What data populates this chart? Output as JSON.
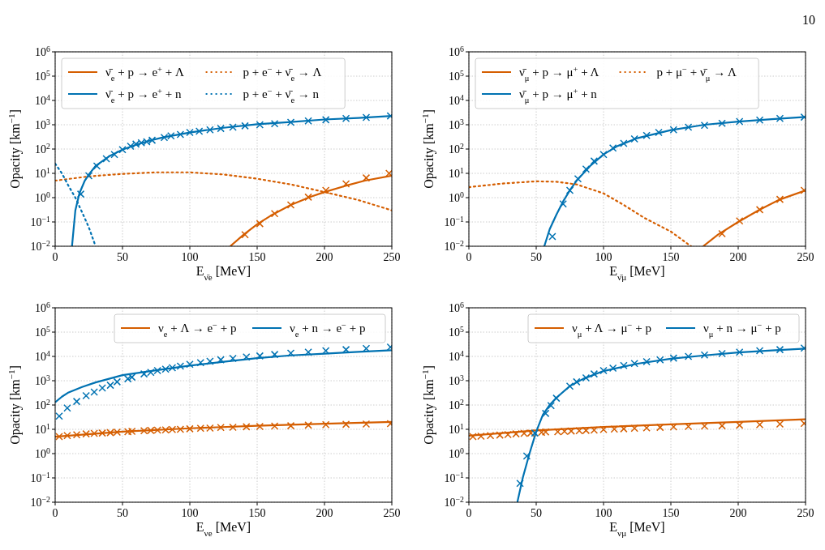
{
  "chart_data": [
    {
      "type": "line",
      "annotations": [
        "10"
      ],
      "xlabel": "E$_{ν̄e}$ [MeV]",
      "ylabel": "Opacity [km$^{−1}$]",
      "xlim": [
        0,
        250
      ],
      "xticks": [
        0,
        50,
        100,
        150,
        200,
        250
      ],
      "ylim": [
        0.01,
        1000000
      ],
      "yticks": [
        {
          "value": 0.01,
          "label": "10$^{−2}$"
        },
        {
          "value": 0.1,
          "label": "10$^{−1}$"
        },
        {
          "value": 1,
          "label": "10$^{0}$"
        },
        {
          "value": 10,
          "label": "10$^{1}$"
        },
        {
          "value": 100,
          "label": "10$^{2}$"
        },
        {
          "value": 1000,
          "label": "10$^{3}$"
        },
        {
          "value": 10000,
          "label": "10$^{4}$"
        },
        {
          "value": 100000,
          "label": "10$^{5}$"
        },
        {
          "value": 1000000,
          "label": "10$^{6}$"
        }
      ],
      "log": true,
      "grid": true,
      "legend": "top left",
      "series": [
        {
          "type": "line",
          "name": "ν̄$_{e}$ + p → e$^{+}$ + Λ",
          "color": "#d55e00",
          "line_style": "solid",
          "x": [
            130,
            140,
            150,
            160,
            175,
            190,
            200,
            215,
            230,
            250
          ],
          "values": [
            0.01,
            0.03,
            0.08,
            0.18,
            0.5,
            1.1,
            1.7,
            3,
            5,
            8
          ]
        },
        {
          "type": "line",
          "name": "ν̄$_{e}$ + p → e$^{+}$ + n",
          "color": "#0072b2",
          "line_style": "solid",
          "x": [
            12.5,
            15,
            18,
            22,
            25,
            30,
            40,
            50,
            60,
            70,
            80,
            100,
            125,
            150,
            175,
            200,
            225,
            250
          ],
          "values": [
            0.01,
            0.3,
            1.5,
            5,
            9,
            20,
            50,
            95,
            150,
            220,
            300,
            480,
            750,
            1050,
            1300,
            1650,
            1900,
            2300
          ]
        },
        {
          "type": "line",
          "name": "p + e$^{−}$ + ν̄$_{e}$ → Λ",
          "color": "#d55e00",
          "line_style": "dotted",
          "x": [
            0,
            25,
            50,
            75,
            100,
            125,
            150,
            175,
            200,
            225,
            250
          ],
          "values": [
            5,
            7.5,
            9.5,
            11,
            11,
            9,
            6,
            3.5,
            1.7,
            0.8,
            0.3
          ]
        },
        {
          "type": "line",
          "name": "p + e$^{−}$ + ν̄$_{e}$ → n",
          "color": "#0072b2",
          "line_style": "dotted",
          "x": [
            0,
            5,
            10,
            15,
            20,
            25,
            30
          ],
          "values": [
            25,
            10,
            3,
            1,
            0.25,
            0.06,
            0.01
          ]
        },
        {
          "type": "scatter",
          "marker": "cross",
          "color": "#d55e00",
          "x": [
            141,
            152,
            163,
            175,
            188,
            201,
            216,
            231,
            248
          ],
          "values": [
            0.03,
            0.085,
            0.22,
            0.5,
            1.05,
            2,
            3.7,
            6.5,
            10
          ]
        },
        {
          "type": "scatter",
          "marker": "cross",
          "color": "#0072b2",
          "x": [
            19,
            25,
            31,
            38,
            44,
            50,
            56,
            60,
            64,
            68,
            72,
            81,
            86,
            93,
            100,
            107,
            115,
            123,
            132,
            141,
            152,
            163,
            175,
            188,
            201,
            216,
            231,
            249
          ],
          "values": [
            1.4,
            8,
            20,
            40,
            60,
            95,
            130,
            160,
            180,
            200,
            230,
            300,
            350,
            400,
            480,
            540,
            620,
            700,
            800,
            900,
            1000,
            1100,
            1250,
            1450,
            1600,
            1800,
            2000,
            2300
          ]
        }
      ]
    },
    {
      "type": "line",
      "xlabel": "E$_{ν̄μ}$ [MeV]",
      "ylabel": "Opacity [km$^{−1}$]",
      "xlim": [
        0,
        250
      ],
      "xticks": [
        0,
        50,
        100,
        150,
        200,
        250
      ],
      "ylim": [
        0.01,
        1000000
      ],
      "yticks": [
        {
          "value": 0.01,
          "label": "10$^{−2}$"
        },
        {
          "value": 0.1,
          "label": "10$^{−1}$"
        },
        {
          "value": 1,
          "label": "10$^{0}$"
        },
        {
          "value": 10,
          "label": "10$^{1}$"
        },
        {
          "value": 100,
          "label": "10$^{2}$"
        },
        {
          "value": 1000,
          "label": "10$^{3}$"
        },
        {
          "value": 10000,
          "label": "10$^{4}$"
        },
        {
          "value": 100000,
          "label": "10$^{5}$"
        },
        {
          "value": 1000000,
          "label": "10$^{6}$"
        }
      ],
      "log": true,
      "grid": true,
      "legend": "top left",
      "series": [
        {
          "type": "line",
          "name": "ν̄$_{μ}$ + p → μ$^{+}$ + Λ",
          "color": "#d55e00",
          "line_style": "solid",
          "x": [
            174,
            185,
            200,
            215,
            230,
            250
          ],
          "values": [
            0.01,
            0.03,
            0.1,
            0.3,
            0.8,
            2
          ]
        },
        {
          "type": "line",
          "name": "ν̄$_{μ}$ + p → μ$^{+}$ + n",
          "color": "#0072b2",
          "line_style": "solid",
          "x": [
            56,
            60,
            65,
            70,
            75,
            80,
            90,
            100,
            110,
            125,
            150,
            175,
            200,
            225,
            250
          ],
          "values": [
            0.01,
            0.05,
            0.2,
            0.7,
            2,
            5,
            20,
            60,
            130,
            280,
            600,
            1000,
            1350,
            1700,
            2100
          ]
        },
        {
          "type": "line",
          "name": "p + μ$^{−}$ + ν̄$_{μ}$ → Λ",
          "color": "#d55e00",
          "line_style": "dotted",
          "x": [
            0,
            25,
            50,
            65,
            80,
            100,
            115,
            130,
            150,
            165
          ],
          "values": [
            2.7,
            3.8,
            4.7,
            4.5,
            3.5,
            1.5,
            0.5,
            0.15,
            0.04,
            0.01
          ]
        },
        {
          "type": "scatter",
          "marker": "cross",
          "color": "#d55e00",
          "x": [
            188,
            201,
            216,
            231,
            249
          ],
          "values": [
            0.033,
            0.11,
            0.32,
            0.85,
            2
          ]
        },
        {
          "type": "scatter",
          "marker": "cross",
          "color": "#0072b2",
          "x": [
            62,
            70,
            75,
            81,
            87,
            93,
            100,
            107,
            115,
            123,
            132,
            141,
            152,
            163,
            175,
            188,
            201,
            216,
            231,
            249
          ],
          "values": [
            0.025,
            0.55,
            2,
            6,
            15,
            32,
            60,
            110,
            170,
            260,
            360,
            480,
            620,
            800,
            950,
            1150,
            1350,
            1550,
            1800,
            2050
          ]
        }
      ]
    },
    {
      "type": "line",
      "xlabel": "E$_{νe}$ [MeV]",
      "ylabel": "Opacity [km$^{−1}$]",
      "xlim": [
        0,
        250
      ],
      "xticks": [
        0,
        50,
        100,
        150,
        200,
        250
      ],
      "ylim": [
        0.01,
        1000000
      ],
      "yticks": [
        {
          "value": 0.01,
          "label": "10$^{−2}$"
        },
        {
          "value": 0.1,
          "label": "10$^{−1}$"
        },
        {
          "value": 1,
          "label": "10$^{0}$"
        },
        {
          "value": 10,
          "label": "10$^{1}$"
        },
        {
          "value": 100,
          "label": "10$^{2}$"
        },
        {
          "value": 1000,
          "label": "10$^{3}$"
        },
        {
          "value": 10000,
          "label": "10$^{4}$"
        },
        {
          "value": 100000,
          "label": "10$^{5}$"
        },
        {
          "value": 1000000,
          "label": "10$^{6}$"
        }
      ],
      "log": true,
      "grid": true,
      "legend": "top right",
      "series": [
        {
          "type": "line",
          "name": "ν$_{e}$ + Λ → e$^{−}$ + p",
          "color": "#d55e00",
          "line_style": "solid",
          "x": [
            0,
            50,
            100,
            150,
            200,
            250
          ],
          "values": [
            5,
            8,
            11,
            14,
            17,
            20
          ]
        },
        {
          "type": "line",
          "name": "ν$_{e}$ + n → e$^{−}$ + p",
          "color": "#0072b2",
          "line_style": "solid",
          "x": [
            0,
            5,
            10,
            20,
            30,
            50,
            75,
            100,
            125,
            150,
            175,
            200,
            225,
            250
          ],
          "values": [
            130,
            220,
            330,
            550,
            850,
            1700,
            2700,
            4200,
            6000,
            8500,
            11000,
            13000,
            15500,
            18000
          ]
        },
        {
          "type": "scatter",
          "marker": "cross",
          "color": "#d55e00",
          "x": [
            3,
            9,
            16,
            23,
            29,
            35,
            41,
            46,
            54,
            57,
            66,
            71,
            76,
            82,
            87,
            93,
            100,
            108,
            115,
            123,
            132,
            142,
            152,
            163,
            175,
            188,
            201,
            216,
            231,
            249
          ],
          "values": [
            5,
            5.5,
            6,
            6.5,
            6.8,
            7,
            7.3,
            7.6,
            8,
            8.2,
            8.7,
            9,
            9.2,
            9.5,
            9.8,
            10,
            10.5,
            11,
            11.3,
            11.8,
            12.2,
            12.7,
            13,
            13.5,
            14,
            14.8,
            15.5,
            16,
            16.5,
            17
          ]
        },
        {
          "type": "scatter",
          "marker": "cross",
          "color": "#0072b2",
          "x": [
            3,
            9,
            16,
            23,
            29,
            35,
            41,
            46,
            54,
            57,
            66,
            71,
            76,
            82,
            87,
            93,
            100,
            108,
            115,
            123,
            132,
            142,
            152,
            163,
            175,
            188,
            201,
            216,
            231,
            249
          ],
          "values": [
            35,
            75,
            140,
            240,
            340,
            500,
            650,
            900,
            1200,
            1400,
            1900,
            2200,
            2600,
            3000,
            3400,
            4000,
            4700,
            5500,
            6300,
            7300,
            8300,
            9400,
            10500,
            12000,
            13500,
            15000,
            17000,
            19000,
            21000,
            24000
          ]
        }
      ]
    },
    {
      "type": "line",
      "xlabel": "E$_{νμ}$ [MeV]",
      "ylabel": "Opacity [km$^{−1}$]",
      "xlim": [
        0,
        250
      ],
      "xticks": [
        0,
        50,
        100,
        150,
        200,
        250
      ],
      "ylim": [
        0.01,
        1000000
      ],
      "yticks": [
        {
          "value": 0.01,
          "label": "10$^{−2}$"
        },
        {
          "value": 0.1,
          "label": "10$^{−1}$"
        },
        {
          "value": 1,
          "label": "10$^{0}$"
        },
        {
          "value": 10,
          "label": "10$^{1}$"
        },
        {
          "value": 100,
          "label": "10$^{2}$"
        },
        {
          "value": 1000,
          "label": "10$^{3}$"
        },
        {
          "value": 10000,
          "label": "10$^{4}$"
        },
        {
          "value": 100000,
          "label": "10$^{5}$"
        },
        {
          "value": 1000000,
          "label": "10$^{6}$"
        }
      ],
      "log": true,
      "grid": true,
      "legend": "top right",
      "series": [
        {
          "type": "line",
          "name": "ν$_{μ}$ + Λ → μ$^{−}$ + p",
          "color": "#d55e00",
          "line_style": "solid",
          "x": [
            0,
            50,
            100,
            150,
            200,
            250
          ],
          "values": [
            5.5,
            9,
            12.5,
            16,
            20,
            26
          ]
        },
        {
          "type": "line",
          "name": "ν$_{μ}$ + n → μ$^{−}$ + p",
          "color": "#0072b2",
          "line_style": "solid",
          "x": [
            36,
            40,
            45,
            50,
            55,
            60,
            65,
            75,
            85,
            100,
            125,
            150,
            175,
            200,
            225,
            250
          ],
          "values": [
            0.01,
            0.1,
            1,
            8,
            40,
            100,
            200,
            600,
            1200,
            2500,
            5000,
            8000,
            11000,
            14500,
            17500,
            21000
          ]
        },
        {
          "type": "scatter",
          "marker": "cross",
          "color": "#d55e00",
          "x": [
            3,
            9,
            16,
            23,
            29,
            35,
            41,
            46,
            54,
            57,
            66,
            71,
            76,
            82,
            87,
            93,
            100,
            108,
            115,
            123,
            132,
            142,
            152,
            163,
            175,
            188,
            201,
            216,
            231,
            249
          ],
          "values": [
            5,
            5.2,
            5.5,
            5.8,
            6.1,
            6.5,
            6.8,
            7,
            7.5,
            7.8,
            8,
            8.2,
            8.5,
            8.7,
            9,
            9.3,
            9.8,
            10.2,
            10.5,
            11,
            11.5,
            12,
            12.5,
            13,
            13.5,
            14,
            14.8,
            15.5,
            16.5,
            17.5
          ]
        },
        {
          "type": "scatter",
          "marker": "cross",
          "color": "#0072b2",
          "x": [
            38,
            43,
            49,
            57,
            61,
            65,
            75,
            80,
            87,
            93,
            100,
            107,
            115,
            123,
            132,
            142,
            152,
            163,
            175,
            188,
            201,
            216,
            231,
            249
          ],
          "values": [
            0.06,
            0.8,
            7,
            45,
            95,
            190,
            600,
            900,
            1300,
            1900,
            2600,
            3300,
            4200,
            5100,
            6100,
            7200,
            8500,
            10000,
            11500,
            13000,
            15000,
            17000,
            19000,
            22000
          ]
        }
      ]
    }
  ]
}
